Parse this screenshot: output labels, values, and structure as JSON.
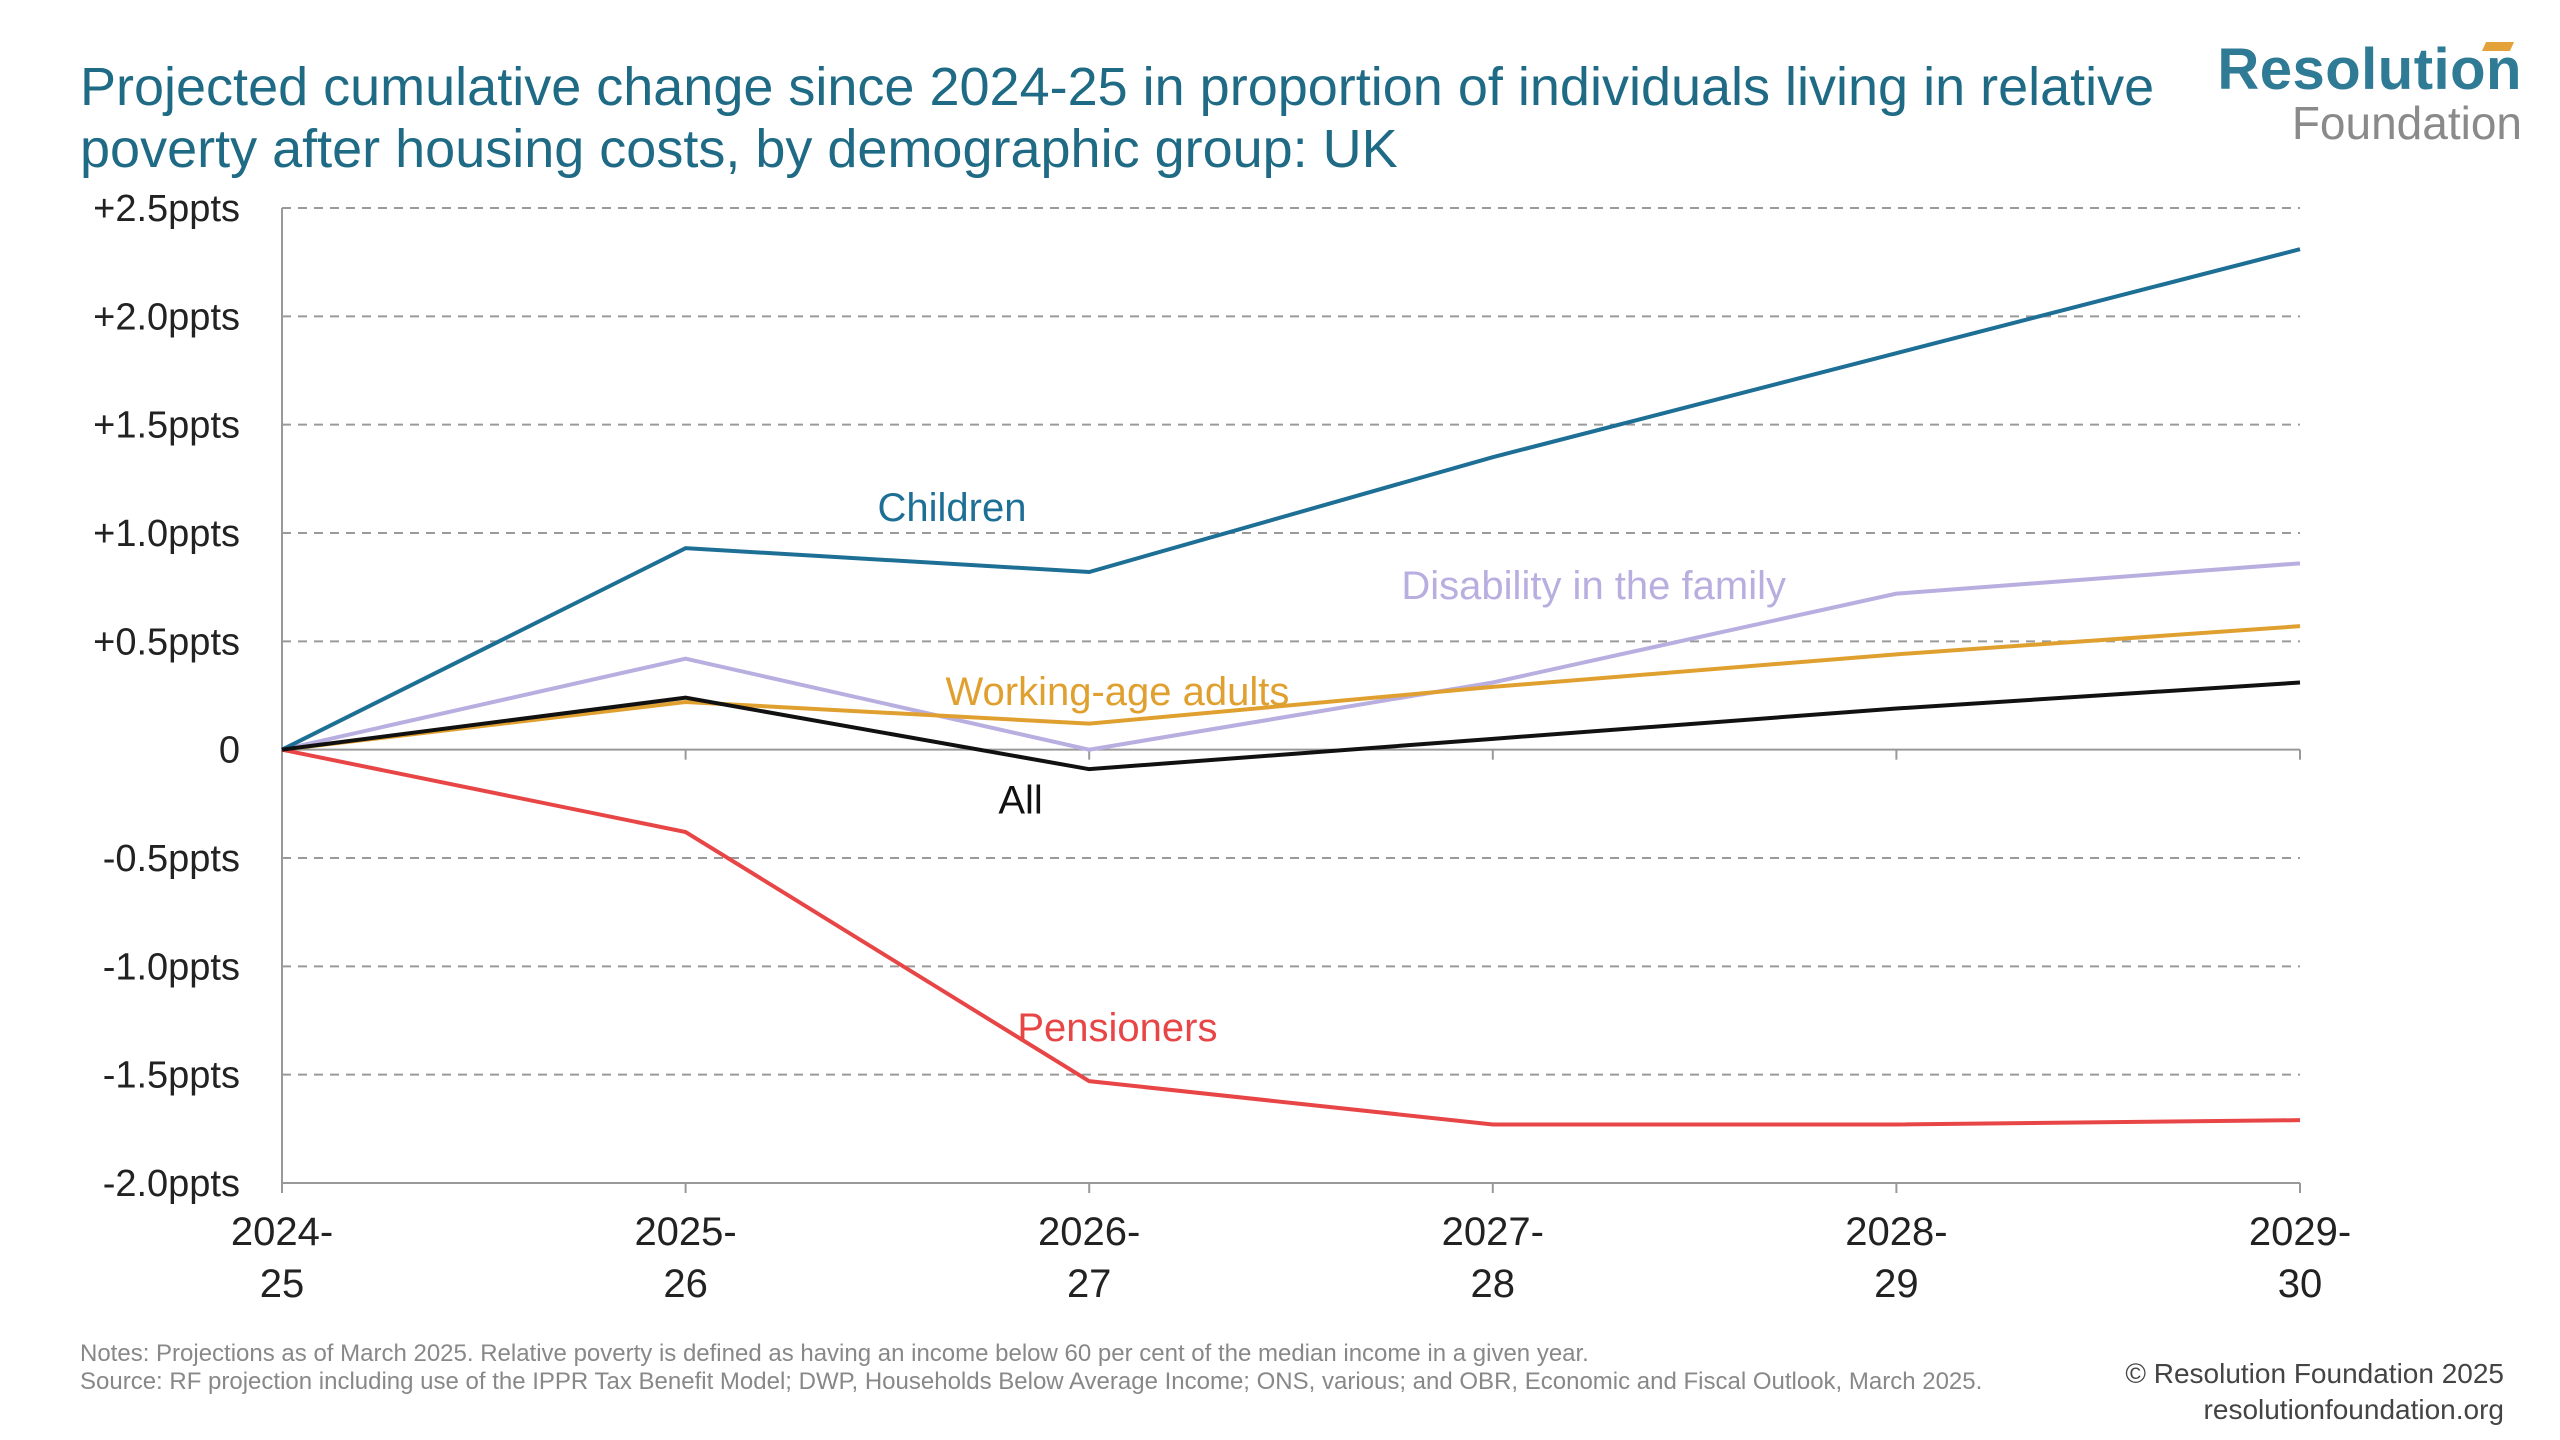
{
  "title": "Projected cumulative change since 2024-25 in proportion of individuals living in relative poverty after housing costs, by demographic group: UK",
  "logo": {
    "top": "Resolution",
    "bottom": "Foundation"
  },
  "footer": {
    "notes": "Notes: Projections as of March 2025. Relative poverty is defined as having an income below 60 per cent of the median income in a given year.",
    "source": "Source: RF projection including use of the IPPR Tax Benefit Model; DWP, Households Below Average Income; ONS, various; and OBR, Economic and Fiscal Outlook, March 2025.",
    "copyright": "© Resolution Foundation 2025",
    "website": "resolutionfoundation.org"
  },
  "chart_data": {
    "type": "line",
    "title": "Projected cumulative change since 2024-25 in proportion of individuals living in relative poverty after housing costs, by demographic group: UK",
    "x": [
      {
        "line1": "2024-",
        "line2": "25"
      },
      {
        "line1": "2025-",
        "line2": "26"
      },
      {
        "line1": "2026-",
        "line2": "27"
      },
      {
        "line1": "2027-",
        "line2": "28"
      },
      {
        "line1": "2028-",
        "line2": "29"
      },
      {
        "line1": "2029-",
        "line2": "30"
      }
    ],
    "ylim": [
      -2.0,
      2.5
    ],
    "yticks": [
      {
        "value": 2.5,
        "label": "+2.5ppts"
      },
      {
        "value": 2.0,
        "label": "+2.0ppts"
      },
      {
        "value": 1.5,
        "label": "+1.5ppts"
      },
      {
        "value": 1.0,
        "label": "+1.0ppts"
      },
      {
        "value": 0.5,
        "label": "+0.5ppts"
      },
      {
        "value": 0,
        "label": "0"
      },
      {
        "value": -0.5,
        "label": "-0.5ppts"
      },
      {
        "value": -1.0,
        "label": "-1.0ppts"
      },
      {
        "value": -1.5,
        "label": "-1.5ppts"
      },
      {
        "value": -2.0,
        "label": "-2.0ppts"
      }
    ],
    "grid": true,
    "series": [
      {
        "id": "children",
        "name": "Children",
        "color": "#1d6f95",
        "values": [
          0,
          0.93,
          0.82,
          1.35,
          1.83,
          2.31
        ],
        "label_at": {
          "x": 1.66,
          "y": 1.12
        }
      },
      {
        "id": "disability",
        "name": "Disability in the family",
        "color": "#b9aee0",
        "values": [
          0,
          0.42,
          0.0,
          0.31,
          0.72,
          0.86
        ],
        "label_at": {
          "x": 3.25,
          "y": 0.76
        }
      },
      {
        "id": "working-age",
        "name": "Working-age adults",
        "color": "#e0a030",
        "values": [
          0,
          0.22,
          0.12,
          0.29,
          0.44,
          0.57
        ],
        "label_at": {
          "x": 2.07,
          "y": 0.27
        }
      },
      {
        "id": "all",
        "name": "All",
        "color": "#111111",
        "values": [
          0,
          0.24,
          -0.09,
          0.05,
          0.19,
          0.31
        ],
        "label_at": {
          "x": 1.83,
          "y": -0.23
        }
      },
      {
        "id": "pensioners",
        "name": "Pensioners",
        "color": "#e84646",
        "values": [
          0,
          -0.38,
          -1.53,
          -1.73,
          -1.73,
          -1.71
        ],
        "label_at": {
          "x": 2.07,
          "y": -1.28
        }
      }
    ]
  }
}
